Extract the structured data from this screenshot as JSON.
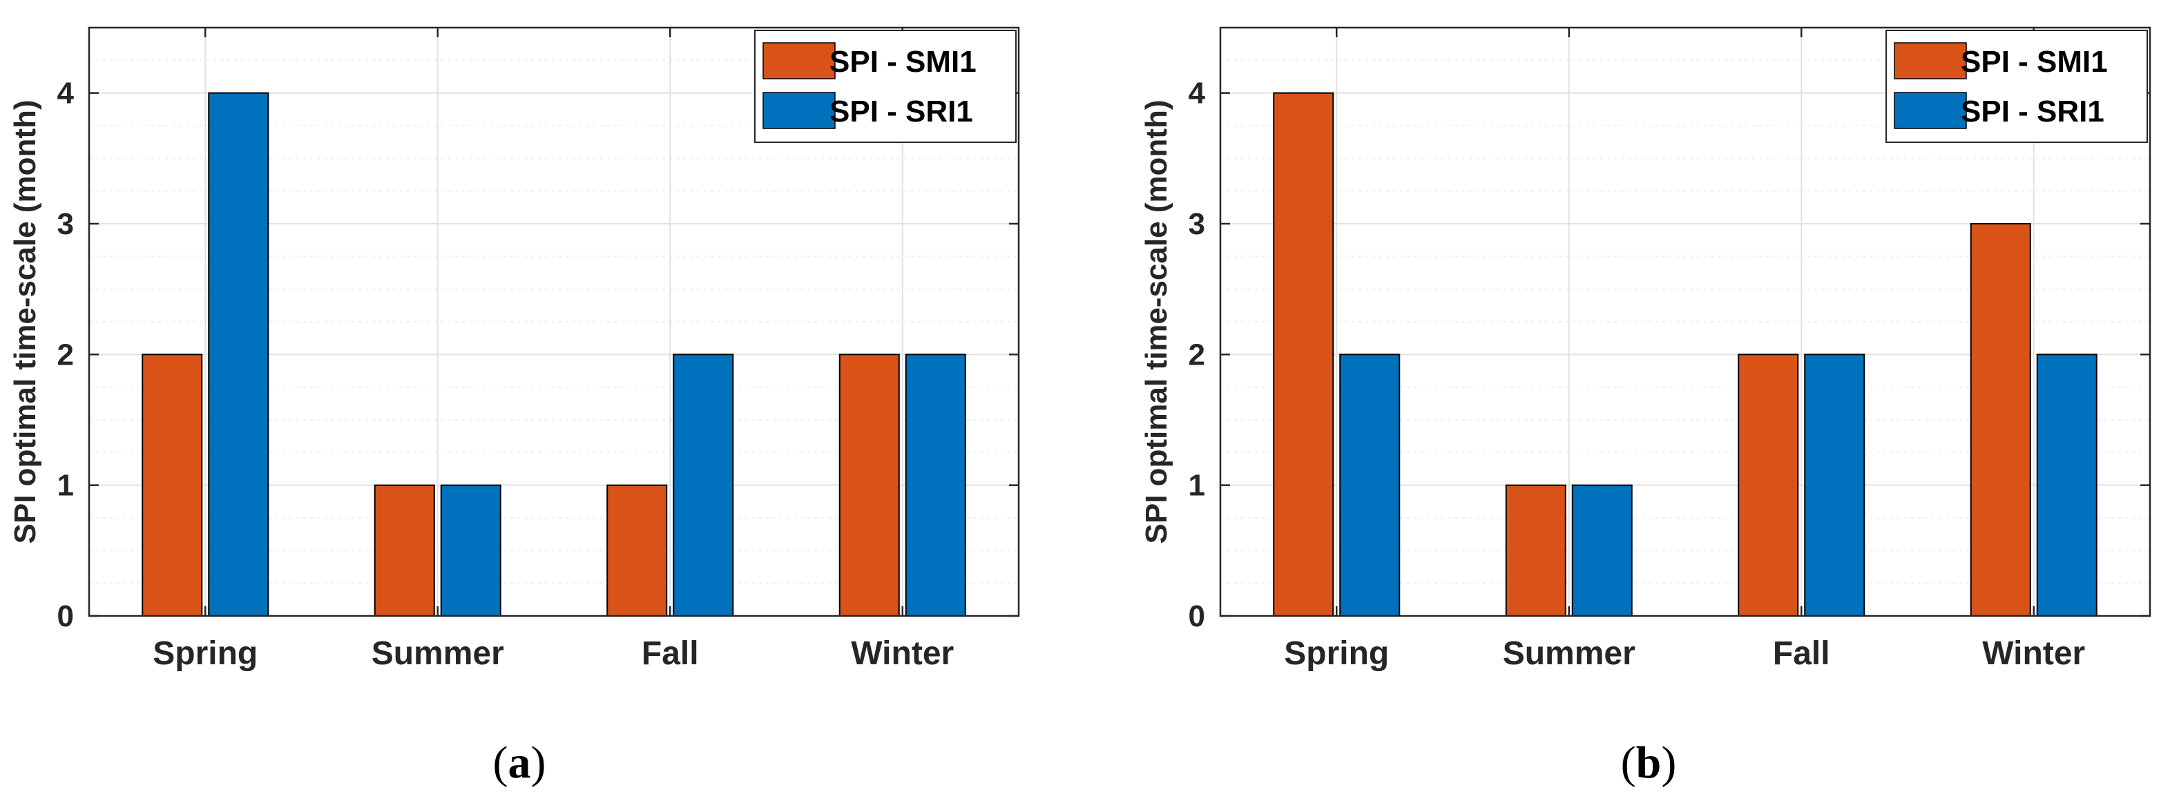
{
  "colors": {
    "smi": "#D95319",
    "sri": "#0072BD",
    "axis": "#262626",
    "grid_major": "#E1E1E1",
    "grid_minor": "#EFEFEF"
  },
  "chart_data": [
    {
      "type": "bar",
      "panel_label": "a",
      "categories": [
        "Spring",
        "Summer",
        "Fall",
        "Winter"
      ],
      "series": [
        {
          "name": "SPI - SMI1",
          "color_key": "smi",
          "values": [
            2,
            1,
            1,
            2
          ]
        },
        {
          "name": "SPI - SRI1",
          "color_key": "sri",
          "values": [
            4,
            1,
            2,
            2
          ]
        }
      ],
      "ylabel": "SPI optimal time-scale (month)",
      "ylim": [
        0,
        4.5
      ],
      "yticks": [
        0,
        1,
        2,
        3,
        4
      ],
      "grid": true,
      "legend_position": "top-right"
    },
    {
      "type": "bar",
      "panel_label": "b",
      "categories": [
        "Spring",
        "Summer",
        "Fall",
        "Winter"
      ],
      "series": [
        {
          "name": "SPI - SMI1",
          "color_key": "smi",
          "values": [
            4,
            1,
            2,
            3
          ]
        },
        {
          "name": "SPI - SRI1",
          "color_key": "sri",
          "values": [
            2,
            1,
            2,
            2
          ]
        }
      ],
      "ylabel": "SPI optimal time-scale (month)",
      "ylim": [
        0,
        4.5
      ],
      "yticks": [
        0,
        1,
        2,
        3,
        4
      ],
      "grid": true,
      "legend_position": "top-right"
    }
  ]
}
